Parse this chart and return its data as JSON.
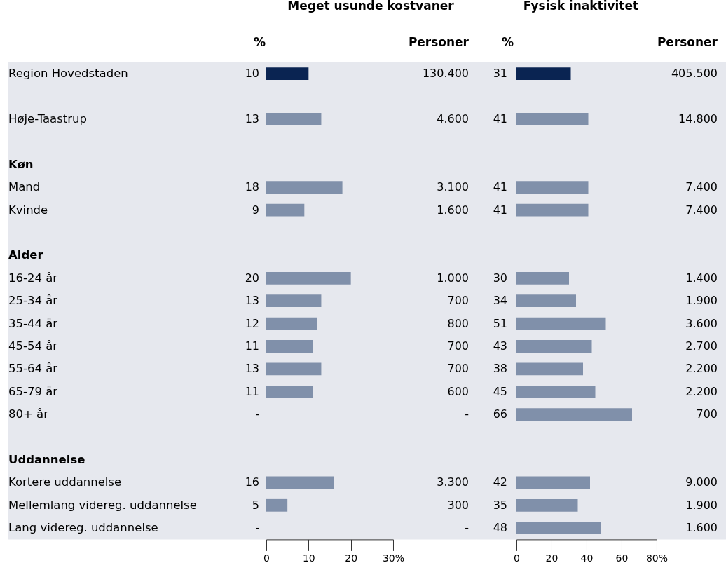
{
  "chart_data": [
    {
      "type": "bar",
      "orientation": "horizontal",
      "title": "Meget usunde kostvaner",
      "categories": [
        "Region Hovedstaden",
        null,
        "Høje-Taastrup",
        null,
        "Køn",
        "Mand",
        "Kvinde",
        null,
        "Alder",
        "16-24 år",
        "25-34 år",
        "35-44 år",
        "45-54 år",
        "55-64 år",
        "65-79 år",
        "80+ år",
        null,
        "Uddannelse",
        "Kortere uddannelse",
        "Mellemlang videreg. uddannelse",
        "Lang videreg. uddannelse"
      ],
      "values": [
        10,
        null,
        13,
        null,
        null,
        18,
        9,
        null,
        null,
        20,
        13,
        12,
        11,
        13,
        11,
        null,
        null,
        null,
        16,
        5,
        null
      ],
      "value_labels": [
        "10",
        null,
        "13",
        null,
        null,
        "18",
        "9",
        null,
        null,
        "20",
        "13",
        "12",
        "11",
        "13",
        "11",
        "-",
        null,
        null,
        "16",
        "5",
        "-"
      ],
      "colors": [
        "#0a2452",
        null,
        "#8090aa",
        null,
        null,
        "#8090aa",
        "#8090aa",
        null,
        null,
        "#8090aa",
        "#8090aa",
        "#8090aa",
        "#8090aa",
        "#8090aa",
        "#8090aa",
        null,
        null,
        null,
        "#8090aa",
        "#8090aa",
        null
      ],
      "xlim": [
        0,
        30
      ],
      "xticks": [
        0,
        10,
        20,
        {
          "value": 30,
          "label": "30%"
        }
      ],
      "annotations": [
        "%",
        "Personer",
        "130.400",
        "4.600",
        "3.100",
        "1.600",
        "1.000",
        "700",
        "800",
        "700",
        "700",
        "600",
        "-",
        "3.300",
        "300",
        "-"
      ]
    },
    {
      "type": "bar",
      "orientation": "horizontal",
      "title": "Fysisk inaktivitet",
      "categories": [
        null,
        null,
        null,
        null,
        null,
        null,
        null,
        null,
        null,
        null,
        null,
        null,
        null,
        null,
        null,
        null,
        null,
        null,
        null,
        null,
        null
      ],
      "values": [
        31,
        null,
        41,
        null,
        null,
        41,
        41,
        null,
        null,
        30,
        34,
        51,
        43,
        38,
        45,
        66,
        null,
        null,
        42,
        35,
        48
      ],
      "value_labels": [
        "31",
        null,
        "41",
        null,
        null,
        "41",
        "41",
        null,
        null,
        "30",
        "34",
        "51",
        "43",
        "38",
        "45",
        "66",
        null,
        null,
        "42",
        "35",
        "48"
      ],
      "colors": [
        "#0a2452",
        null,
        "#8090aa",
        null,
        null,
        "#8090aa",
        "#8090aa",
        null,
        null,
        "#8090aa",
        "#8090aa",
        "#8090aa",
        "#8090aa",
        "#8090aa",
        "#8090aa",
        "#8090aa",
        null,
        null,
        "#8090aa",
        "#8090aa",
        "#8090aa"
      ],
      "xlim": [
        0,
        80
      ],
      "xticks": [
        0,
        20,
        40,
        60,
        {
          "value": 80,
          "label": "80%"
        }
      ],
      "annotations": [
        "%",
        "Personer",
        "405.500",
        "14.800",
        "7.400",
        "7.400",
        "1.400",
        "1.900",
        "3.600",
        "2.700",
        "2.200",
        "2.200",
        "700",
        "9.000",
        "1.900",
        "1.600"
      ]
    }
  ]
}
